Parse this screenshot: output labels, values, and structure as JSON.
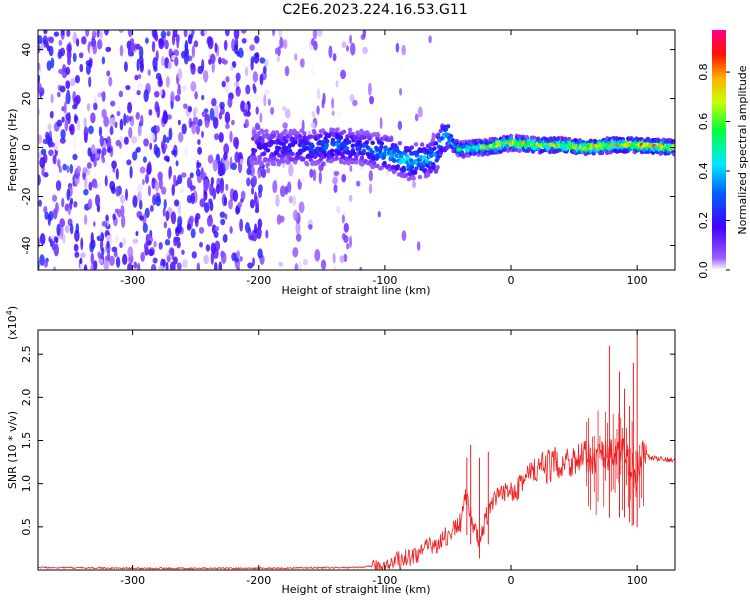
{
  "title": "C2E6.2023.224.16.53.G11",
  "chart_data": [
    {
      "type": "heatmap",
      "xlabel": "Height of straight line (km)",
      "ylabel": "Frequency (Hz)",
      "xlim": [
        -375,
        130
      ],
      "ylim": [
        -50,
        48
      ],
      "x_ticks": [
        -300,
        -200,
        -100,
        0,
        100
      ],
      "y_ticks": [
        -40,
        -20,
        0,
        20,
        40
      ],
      "colorbar": {
        "label": "Normalized spectral amplitude",
        "range": [
          0.0,
          0.97
        ],
        "ticks": [
          "0.0",
          "0.2",
          "0.4",
          "0.6",
          "0.8"
        ],
        "colormap": [
          "#ffffff",
          "#7f00ff",
          "#0000ff",
          "#00ffff",
          "#00ff00",
          "#ffff00",
          "#ff0000",
          "#ff0080"
        ]
      },
      "ridge": {
        "x": [
          -200,
          -180,
          -160,
          -140,
          -120,
          -100,
          -90,
          -80,
          -70,
          -60,
          -55,
          -50,
          -45,
          -40,
          -30,
          -20,
          -10,
          0,
          20,
          40,
          60,
          80,
          100,
          130
        ],
        "frequency": [
          0,
          0,
          0,
          1,
          0,
          -2,
          -4,
          -6,
          -5,
          -4,
          3,
          5,
          1,
          -1,
          0,
          0,
          1,
          2,
          1,
          1,
          0,
          1,
          1,
          0
        ],
        "amplitude": [
          0.2,
          0.25,
          0.3,
          0.35,
          0.3,
          0.4,
          0.45,
          0.5,
          0.45,
          0.4,
          0.4,
          0.5,
          0.5,
          0.55,
          0.6,
          0.7,
          0.75,
          0.8,
          0.8,
          0.75,
          0.8,
          0.8,
          0.85,
          0.75
        ]
      }
    },
    {
      "type": "line",
      "xlabel": "Height of straight line (km)",
      "ylabel": "SNR (10 * v/v)",
      "multiplier": "(x10",
      "multiplier_exp": "4",
      "multiplier_close": ")",
      "xlim": [
        -375,
        130
      ],
      "ylim": [
        0,
        2.78
      ],
      "x_ticks": [
        -300,
        -200,
        -100,
        0,
        100
      ],
      "y_ticks": [
        "0.5",
        "1.0",
        "1.5",
        "2.0",
        "2.5"
      ],
      "line_color": "#ee2222",
      "series": [
        {
          "x": [
            -375,
            -300,
            -200,
            -120,
            -100,
            -80,
            -60,
            -50,
            -40,
            -35,
            -30,
            -25,
            -20,
            -15,
            -10,
            0,
            10,
            20,
            30,
            40,
            50,
            60,
            70,
            80,
            90,
            95,
            100,
            105,
            110,
            120,
            130
          ],
          "values": [
            0.03,
            0.02,
            0.02,
            0.03,
            0.06,
            0.15,
            0.3,
            0.4,
            0.55,
            0.9,
            0.5,
            0.3,
            0.6,
            0.75,
            0.85,
            0.95,
            1.05,
            1.15,
            1.2,
            1.25,
            1.28,
            1.3,
            1.32,
            1.35,
            1.35,
            1.2,
            1.1,
            1.35,
            1.3,
            1.28,
            1.28
          ]
        }
      ],
      "spikes": {
        "x": [
          -35,
          -32,
          -25,
          -18,
          78,
          86,
          90,
          94,
          97,
          100
        ],
        "values": [
          1.3,
          1.45,
          1.3,
          1.37,
          2.6,
          2.3,
          2.1,
          1.9,
          2.4,
          2.78
        ]
      }
    }
  ]
}
